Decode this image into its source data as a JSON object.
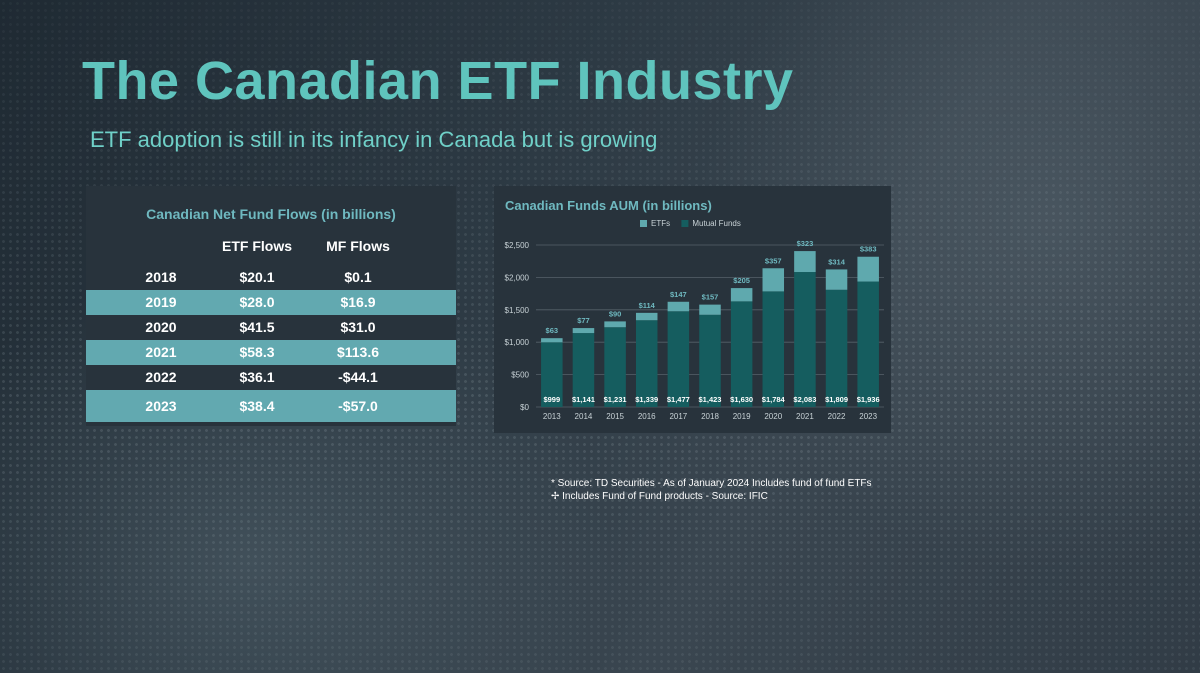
{
  "slide": {
    "title": "The Canadian ETF Industry",
    "subtitle": "ETF adoption is still in its infancy in Canada but is growing"
  },
  "flows_table": {
    "title": "Canadian Net Fund Flows (in billions)",
    "columns": [
      "",
      "ETF Flows",
      "MF Flows"
    ],
    "rows": [
      {
        "year": "2018",
        "etf": "$20.1",
        "mf": "$0.1"
      },
      {
        "year": "2019",
        "etf": "$28.0",
        "mf": "$16.9"
      },
      {
        "year": "2020",
        "etf": "$41.5",
        "mf": "$31.0"
      },
      {
        "year": "2021",
        "etf": "$58.3",
        "mf": "$113.6"
      },
      {
        "year": "2022",
        "etf": "$36.1",
        "mf": "-$44.1"
      },
      {
        "year": "2023",
        "etf": "$38.4",
        "mf": "-$57.0"
      }
    ]
  },
  "chart_data": {
    "type": "bar",
    "stacked": true,
    "title": "Canadian Funds AUM (in billions)",
    "categories": [
      "2013",
      "2014",
      "2015",
      "2016",
      "2017",
      "2018",
      "2019",
      "2020",
      "2021",
      "2022",
      "2023"
    ],
    "series": [
      {
        "name": "Mutual Funds",
        "color": "#155d5f",
        "values": [
          999,
          1141,
          1231,
          1339,
          1477,
          1423,
          1630,
          1784,
          2083,
          1809,
          1936
        ],
        "labels": [
          "$999",
          "$1,141",
          "$1,231",
          "$1,339",
          "$1,477",
          "$1,423",
          "$1,630",
          "$1,784",
          "$2,083",
          "$1,809",
          "$1,936"
        ]
      },
      {
        "name": "ETFs",
        "color": "#5fa9ae",
        "values": [
          63,
          77,
          90,
          114,
          147,
          157,
          205,
          357,
          323,
          314,
          383
        ],
        "labels": [
          "$63",
          "$77",
          "$90",
          "$114",
          "$147",
          "$157",
          "$205",
          "$357",
          "$323",
          "$314",
          "$383"
        ]
      }
    ],
    "legend_order": [
      "ETFs",
      "Mutual Funds"
    ],
    "legend_position": "top-center",
    "ylim": [
      0,
      2500
    ],
    "yticks": [
      0,
      500,
      1000,
      1500,
      2000,
      2500
    ],
    "ytick_labels": [
      "$0",
      "$500",
      "$1,000",
      "$1,500",
      "$2,000",
      "$2,500"
    ],
    "grid": true
  },
  "footnotes": [
    "*  Source: TD Securities - As of January 2024 Includes fund of fund ETFs",
    "✢ Includes Fund of Fund products - Source: IFIC"
  ]
}
